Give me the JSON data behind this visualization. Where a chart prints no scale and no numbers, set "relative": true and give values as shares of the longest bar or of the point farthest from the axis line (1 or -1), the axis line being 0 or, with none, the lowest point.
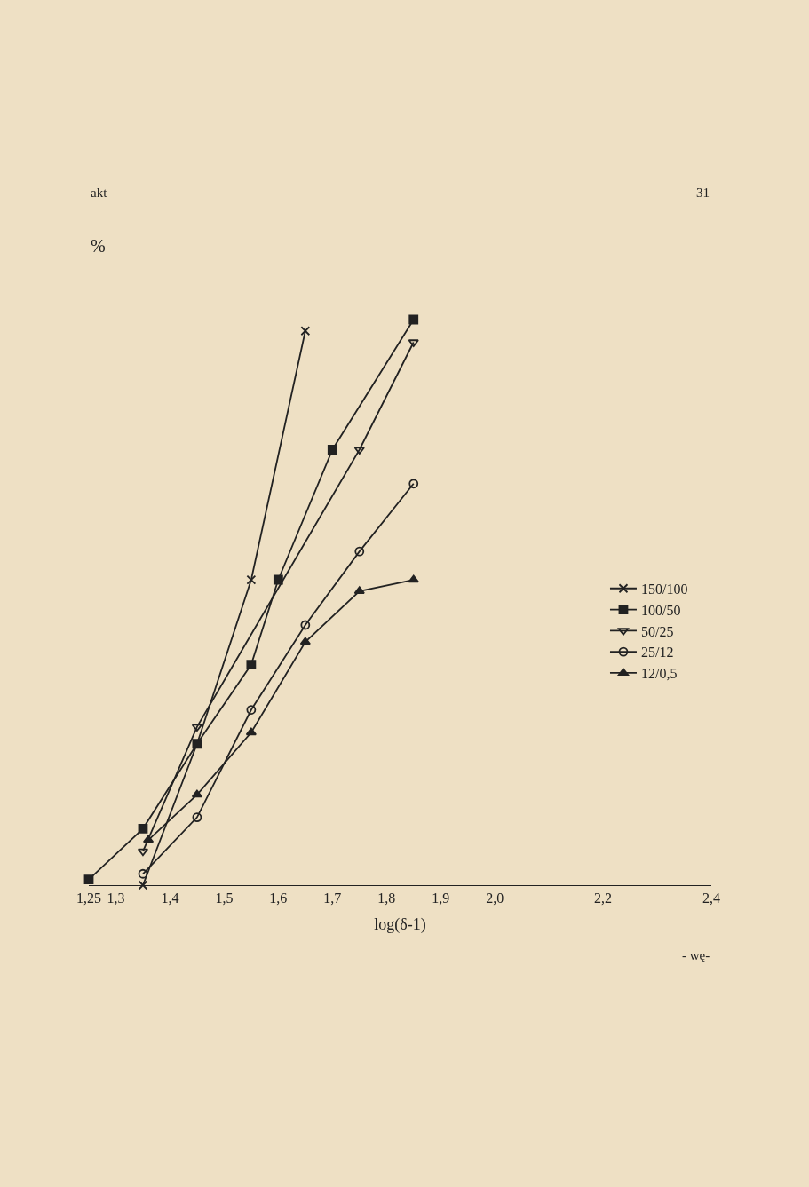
{
  "chart_data": {
    "type": "line",
    "relative": true,
    "xlabel": "log(δ-1)",
    "ylabel": "%",
    "xlim": [
      1.25,
      2.4
    ],
    "xticks": [
      {
        "value": 1.25,
        "label": "1,25"
      },
      {
        "value": 1.3,
        "label": "1,3"
      },
      {
        "value": 1.4,
        "label": "1,4"
      },
      {
        "value": 1.5,
        "label": "1,5"
      },
      {
        "value": 1.6,
        "label": "1,6"
      },
      {
        "value": 1.7,
        "label": "1,7"
      },
      {
        "value": 1.8,
        "label": "1,8"
      },
      {
        "value": 1.9,
        "label": "1,9"
      },
      {
        "value": 2.0,
        "label": "2,0"
      },
      {
        "value": 2.2,
        "label": "2,2"
      },
      {
        "value": 2.4,
        "label": "2,4"
      }
    ],
    "series": [
      {
        "name": "150/100",
        "color": "#222222",
        "marker": "cross",
        "x": [
          1.35,
          1.45,
          1.55,
          1.65
        ],
        "values": [
          0,
          0.25,
          0.54,
          0.98
        ]
      },
      {
        "name": "100/50",
        "color": "#222222",
        "marker": "square",
        "x": [
          1.25,
          1.35,
          1.45,
          1.55,
          1.6,
          1.7,
          1.85
        ],
        "values": [
          0.01,
          0.1,
          0.25,
          0.39,
          0.54,
          0.77,
          1
        ]
      },
      {
        "name": "50/25",
        "color": "#222222",
        "marker": "triangle-down",
        "x": [
          1.35,
          1.45,
          1.75,
          1.85
        ],
        "values": [
          0.06,
          0.28,
          0.77,
          0.96
        ]
      },
      {
        "name": "25/12",
        "color": "#222222",
        "marker": "circle",
        "x": [
          1.35,
          1.45,
          1.55,
          1.65,
          1.75,
          1.85
        ],
        "values": [
          0.02,
          0.12,
          0.31,
          0.46,
          0.59,
          0.71
        ]
      },
      {
        "name": "12/0,5",
        "color": "#222222",
        "marker": "triangle",
        "x": [
          1.36,
          1.45,
          1.55,
          1.65,
          1.75,
          1.85
        ],
        "values": [
          0.08,
          0.16,
          0.27,
          0.43,
          0.52,
          0.54
        ]
      }
    ],
    "legend": "right",
    "grid": false,
    "line_style": "solid",
    "annotations": [
      "akt",
      "31",
      "- wę-"
    ]
  }
}
